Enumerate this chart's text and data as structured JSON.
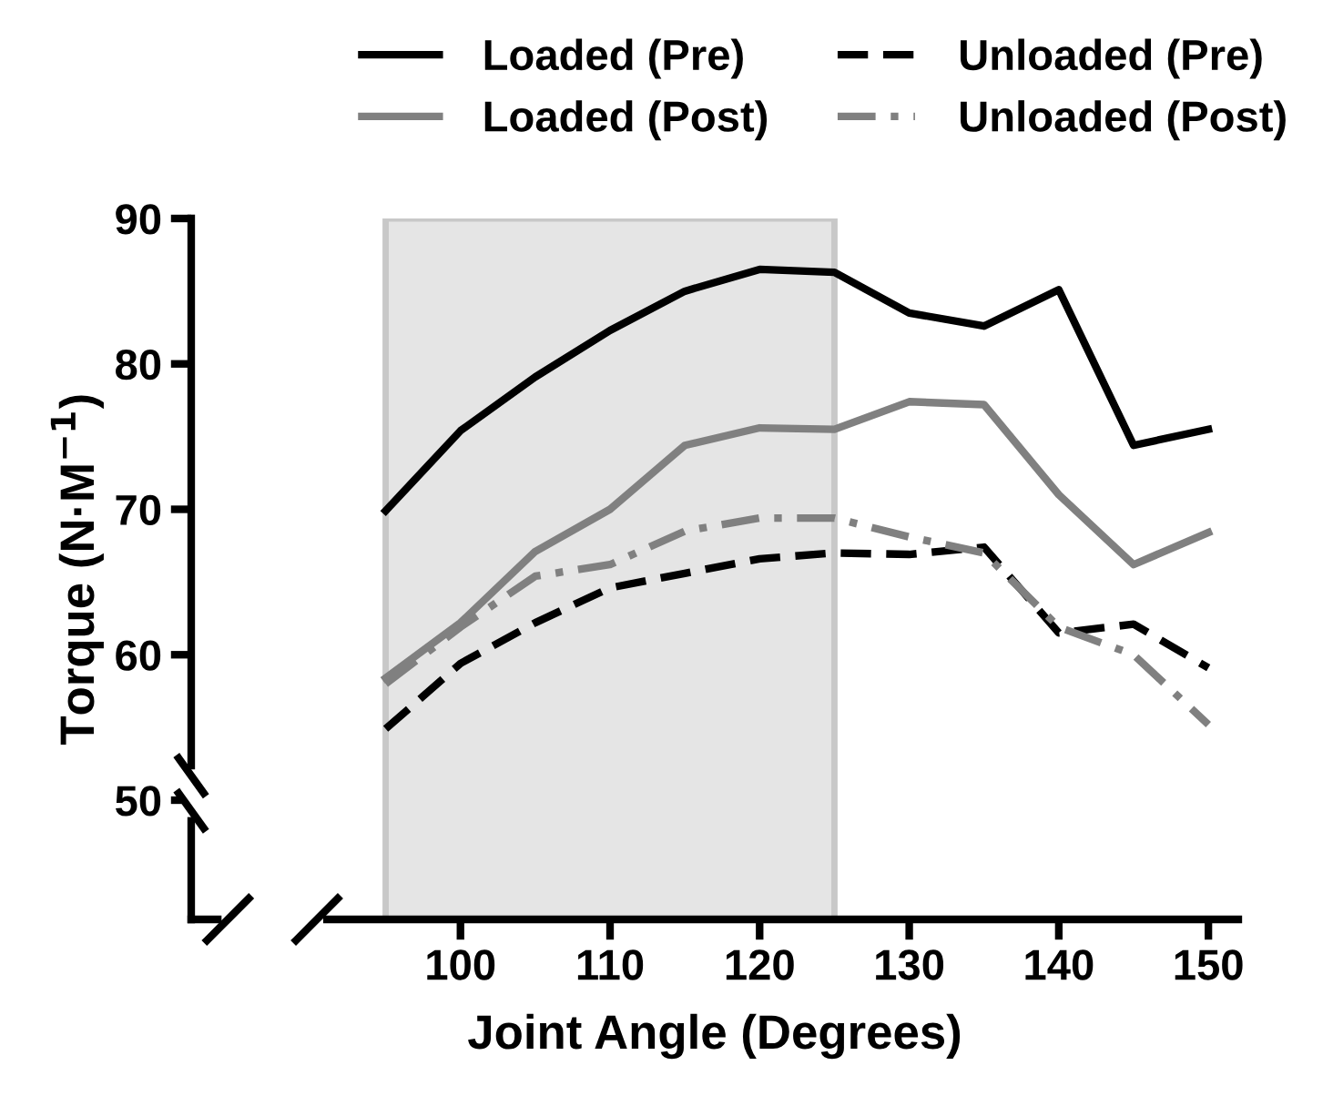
{
  "chart_data": {
    "type": "line",
    "xlabel": "Joint Angle (Degrees)",
    "ylabel": "Torque (N·M$^{−1}$)",
    "x": [
      95,
      100,
      105,
      110,
      115,
      120,
      125,
      130,
      135,
      140,
      145,
      150
    ],
    "series": [
      {
        "name": "Loaded (Pre)",
        "color": "#000000",
        "line_style": "solid",
        "values": [
          69.9,
          75.4,
          79.1,
          82.3,
          85.0,
          86.5,
          86.3,
          83.5,
          82.6,
          85.1,
          74.4,
          75.5
        ]
      },
      {
        "name": "Loaded (Post)",
        "color": "#808080",
        "line_style": "solid",
        "values": [
          58.4,
          62.2,
          67.1,
          70.0,
          74.4,
          75.6,
          75.5,
          77.4,
          77.2,
          71.0,
          66.2,
          68.4
        ]
      },
      {
        "name": "Unloaded (Pre)",
        "color": "#000000",
        "line_style": "dashed",
        "values": [
          54.9,
          59.4,
          62.2,
          64.6,
          65.6,
          66.6,
          67.0,
          66.9,
          67.4,
          61.5,
          62.1,
          59.1
        ]
      },
      {
        "name": "Unloaded (Post)",
        "color": "#808080",
        "line_style": "dashdot",
        "values": [
          58.0,
          61.9,
          65.4,
          66.2,
          68.5,
          69.4,
          69.4,
          68.1,
          67.0,
          61.9,
          60.0,
          55.2
        ]
      }
    ],
    "xlim": [
      82,
      152
    ],
    "ylim": [
      41.8,
      90
    ],
    "xticks": [
      100,
      110,
      120,
      130,
      140,
      150
    ],
    "yticks": [
      50,
      60,
      70,
      80,
      90
    ],
    "bands": [
      {
        "axis": "x",
        "from": 95,
        "to": 125,
        "color": "#e5e5e5"
      }
    ],
    "grid": false,
    "legend": "top",
    "marker": "none"
  }
}
